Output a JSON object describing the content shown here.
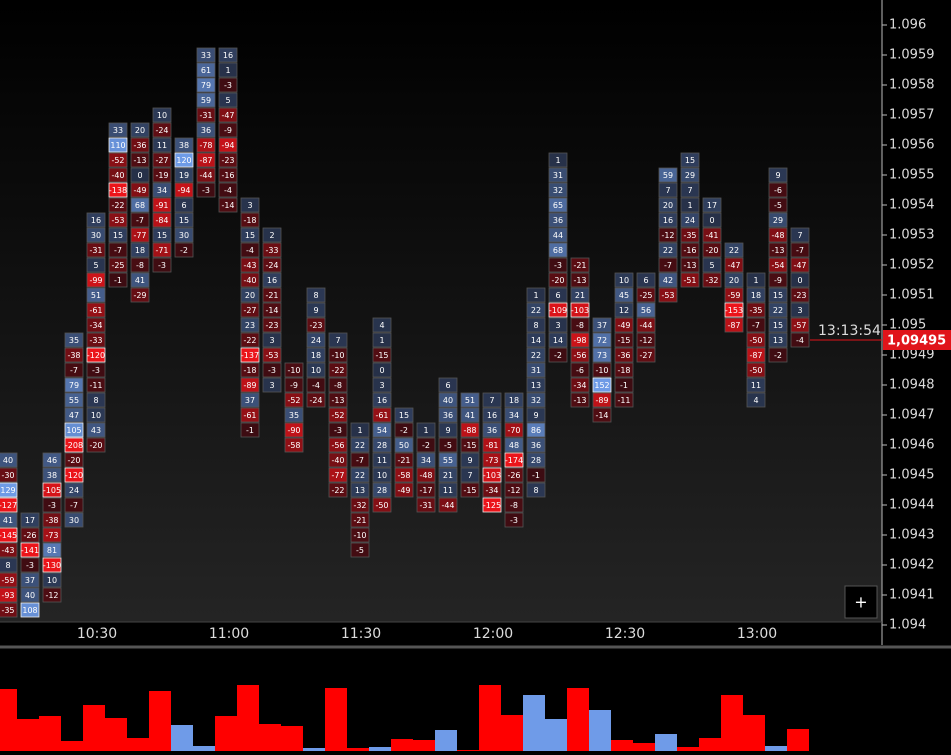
{
  "chart_data": {
    "type": "footprint",
    "ylim": [
      1.094,
      1.096
    ],
    "yticks": [
      1.094,
      1.0941,
      1.0942,
      1.0943,
      1.0944,
      1.0945,
      1.0946,
      1.0947,
      1.0948,
      1.0949,
      1.095,
      1.0951,
      1.0952,
      1.0953,
      1.0954,
      1.0955,
      1.0956,
      1.0957,
      1.0958,
      1.0959,
      1.096
    ],
    "categories": [
      null,
      null,
      null,
      null,
      "10:30",
      null,
      null,
      null,
      null,
      null,
      "11:00",
      null,
      null,
      null,
      null,
      null,
      "11:30",
      null,
      null,
      null,
      null,
      null,
      "12:00",
      null,
      null,
      null,
      null,
      null,
      "12:30",
      null,
      null,
      null,
      null,
      null,
      "13:00",
      null,
      null
    ],
    "columns": [
      {
        "top": 1.09455,
        "values": [
          40,
          -30,
          129,
          -127,
          41,
          -145,
          -43,
          8,
          -59,
          -93,
          -35
        ]
      },
      {
        "top": 1.09435,
        "values": [
          17,
          -26,
          -141,
          -3,
          37,
          40,
          108
        ]
      },
      {
        "top": 1.09455,
        "values": [
          46,
          38,
          -105,
          -3,
          -38,
          -73,
          81,
          -130,
          10,
          -12
        ]
      },
      {
        "top": 1.09495,
        "values": [
          35,
          -38,
          -7,
          79,
          55,
          47,
          105,
          -208,
          -20,
          -120,
          24,
          -7,
          30
        ]
      },
      {
        "top": 1.09535,
        "values": [
          16,
          30,
          -31,
          5,
          -99,
          51,
          -61,
          -34,
          -33,
          -120,
          -3,
          -11,
          8,
          10,
          43,
          -20
        ]
      },
      {
        "top": 1.09565,
        "values": [
          33,
          110,
          -52,
          -40,
          -138,
          -22,
          -53,
          15,
          -7,
          -25,
          -1
        ]
      },
      {
        "top": 1.09565,
        "values": [
          20,
          -36,
          -13,
          0,
          -49,
          68,
          -7,
          -77,
          18,
          -8,
          41,
          -29
        ]
      },
      {
        "top": 1.0957,
        "values": [
          10,
          -24,
          11,
          -27,
          -19,
          34,
          -91,
          -84,
          15,
          -71,
          -3
        ]
      },
      {
        "top": 1.0956,
        "values": [
          38,
          120,
          19,
          -94,
          6,
          15,
          30,
          -2
        ]
      },
      {
        "top": 1.0959,
        "values": [
          33,
          61,
          79,
          59,
          -31,
          36,
          -78,
          -87,
          -44,
          -3
        ]
      },
      {
        "top": 1.0959,
        "values": [
          16,
          1,
          -3,
          5,
          -47,
          -9,
          -94,
          -23,
          -16,
          -4,
          -14
        ]
      },
      {
        "top": 1.0954,
        "values": [
          3,
          -18,
          15,
          -4,
          -43,
          -40,
          20,
          -27,
          23,
          -22,
          -137,
          -18,
          -89,
          37,
          -61,
          -1
        ]
      },
      {
        "top": 1.0953,
        "values": [
          2,
          -33,
          -24,
          16,
          -21,
          -14,
          -23,
          3,
          -53,
          -3,
          3
        ]
      },
      {
        "top": 1.09485,
        "values": [
          -10,
          -9,
          -52,
          35,
          -90,
          -58
        ]
      },
      {
        "top": 1.0951,
        "values": [
          8,
          9,
          -23,
          24,
          18,
          10,
          -4,
          -24
        ]
      },
      {
        "top": 1.09495,
        "values": [
          7,
          -10,
          -22,
          -8,
          -13,
          -52,
          -3,
          -56,
          -40,
          -77,
          -22
        ]
      },
      {
        "top": 1.09465,
        "values": [
          1,
          22,
          -7,
          22,
          13,
          -32,
          -21,
          -10,
          -5
        ]
      },
      {
        "top": 1.095,
        "values": [
          4,
          1,
          -15,
          0,
          3,
          16,
          -61,
          54,
          28,
          11,
          10,
          28,
          -50
        ]
      },
      {
        "top": 1.0947,
        "values": [
          15,
          -2,
          50,
          -21,
          -58,
          -49
        ]
      },
      {
        "top": 1.09465,
        "values": [
          1,
          -2,
          34,
          -48,
          -17,
          -31
        ]
      },
      {
        "top": 1.0948,
        "values": [
          6,
          40,
          36,
          9,
          -5,
          55,
          21,
          11,
          -44
        ]
      },
      {
        "top": 1.09475,
        "values": [
          51,
          41,
          -88,
          -15,
          9,
          7,
          -15
        ]
      },
      {
        "top": 1.09475,
        "values": [
          7,
          16,
          36,
          -81,
          -73,
          -103,
          -34,
          -125
        ]
      },
      {
        "top": 1.09475,
        "values": [
          18,
          34,
          -70,
          48,
          -174,
          -26,
          -12,
          -8,
          -3
        ]
      },
      {
        "top": 1.0951,
        "values": [
          1,
          22,
          8,
          14,
          22,
          31,
          13,
          32,
          9,
          86,
          36,
          28,
          -1,
          8
        ]
      },
      {
        "top": 1.09555,
        "values": [
          1,
          31,
          32,
          65,
          36,
          44,
          68,
          -3,
          -20,
          6,
          -109,
          3,
          14,
          -2
        ]
      },
      {
        "top": 1.0952,
        "values": [
          -21,
          -13,
          21,
          -103,
          -8,
          -98,
          -56,
          -6,
          -34,
          -13
        ]
      },
      {
        "top": 1.095,
        "values": [
          37,
          72,
          73,
          -10,
          152,
          -89,
          -14
        ]
      },
      {
        "top": 1.09515,
        "values": [
          10,
          45,
          12,
          -49,
          -15,
          -36,
          -18,
          -1,
          -11
        ]
      },
      {
        "top": 1.09515,
        "values": [
          6,
          -25,
          56,
          -44,
          -12,
          -27
        ]
      },
      {
        "top": 1.0955,
        "values": [
          59,
          7,
          20,
          16,
          -12,
          22,
          -7,
          42,
          -53
        ]
      },
      {
        "top": 1.09555,
        "values": [
          15,
          29,
          7,
          1,
          24,
          -35,
          -16,
          -13,
          -51
        ]
      },
      {
        "top": 1.0954,
        "values": [
          17,
          0,
          -41,
          -20,
          5,
          -32
        ]
      },
      {
        "top": 1.09525,
        "values": [
          22,
          -47,
          20,
          -59,
          -153,
          -87
        ]
      },
      {
        "top": 1.09515,
        "values": [
          1,
          18,
          -35,
          -7,
          -50,
          -87,
          -50,
          11,
          4
        ]
      },
      {
        "top": 1.0955,
        "values": [
          9,
          -6,
          -5,
          29,
          -48,
          -13,
          -54,
          -9,
          15,
          22,
          15,
          13,
          -2
        ]
      },
      {
        "top": 1.0953,
        "values": [
          7,
          -7,
          -47,
          0,
          -23,
          3,
          -57,
          -4
        ]
      }
    ],
    "last_price": {
      "value": 1.09495,
      "label": "1,09495"
    },
    "last_time": "13:13:54",
    "volume": {
      "values": [
        62,
        32,
        35,
        10,
        46,
        33,
        13,
        60,
        26,
        5,
        35,
        66,
        27,
        25,
        3,
        63,
        3,
        4,
        12,
        11,
        21,
        1,
        66,
        36,
        56,
        32,
        63,
        41,
        11,
        8,
        17,
        4,
        13,
        56,
        36,
        5,
        22
      ],
      "colors": [
        "#ff0000",
        "#ff0000",
        "#ff0000",
        "#ff0000",
        "#ff0000",
        "#ff0000",
        "#ff0000",
        "#ff0000",
        "#6f9be8",
        "#6f9be8",
        "#ff0000",
        "#ff0000",
        "#ff0000",
        "#ff0000",
        "#6f9be8",
        "#ff0000",
        "#ff0000",
        "#6f9be8",
        "#ff0000",
        "#ff0000",
        "#6f9be8",
        "#ff0000",
        "#ff0000",
        "#ff0000",
        "#6f9be8",
        "#6f9be8",
        "#ff0000",
        "#6f9be8",
        "#ff0000",
        "#ff0000",
        "#6f9be8",
        "#ff0000",
        "#ff0000",
        "#ff0000",
        "#ff0000",
        "#6f9be8",
        "#ff0000"
      ]
    }
  },
  "ui": {
    "zoom_button": "+"
  }
}
